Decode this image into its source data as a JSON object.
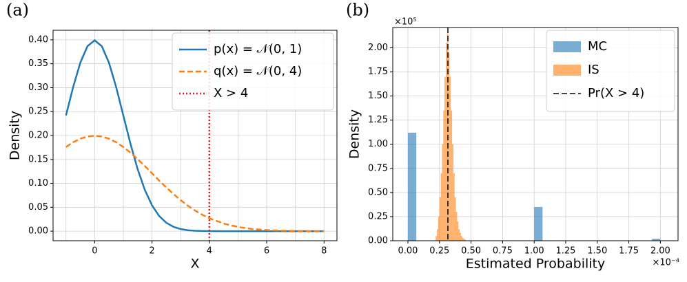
{
  "chart_data": [
    {
      "type": "line",
      "panel_label": "(a)",
      "xlabel": "X",
      "ylabel": "Density",
      "x": [
        -1,
        -0.75,
        -0.5,
        -0.25,
        0,
        0.25,
        0.5,
        0.75,
        1,
        1.25,
        1.5,
        1.75,
        2,
        2.25,
        2.5,
        2.75,
        3,
        3.25,
        3.5,
        3.75,
        4,
        4.5,
        5,
        5.5,
        6,
        6.5,
        7,
        7.5,
        8
      ],
      "series": [
        {
          "name": "p(x) = 𝒩(0, 1)",
          "color": "#1f77b4",
          "dash": "solid",
          "values": [
            0.242,
            0.3011,
            0.3521,
            0.3867,
            0.3989,
            0.3867,
            0.3521,
            0.3011,
            0.242,
            0.1826,
            0.1295,
            0.0863,
            0.054,
            0.0317,
            0.0175,
            0.0091,
            0.0044,
            0.002,
            0.0009,
            0.0004,
            0.0001,
            0,
            0,
            0,
            0,
            0,
            0,
            0,
            0
          ]
        },
        {
          "name": "q(x) = 𝒩(0, 4)",
          "color": "#ff7f0e",
          "dash": "dashed",
          "values": [
            0.176,
            0.1859,
            0.1933,
            0.1979,
            0.1995,
            0.1979,
            0.1933,
            0.1859,
            0.176,
            0.1641,
            0.1506,
            0.136,
            0.121,
            0.1059,
            0.0913,
            0.0775,
            0.0648,
            0.0533,
            0.0431,
            0.0344,
            0.027,
            0.0159,
            0.0088,
            0.0045,
            0.0022,
            0.001,
            0.0004,
            0.0002,
            0.0001
          ]
        }
      ],
      "vlines": [
        {
          "name": "X > 4",
          "x": 4,
          "color": "#e31a1c",
          "dash": "dotted"
        }
      ],
      "xlim": [
        -1.45,
        8.45
      ],
      "ylim": [
        -0.02,
        0.42
      ],
      "xticks": [
        0,
        2,
        4,
        6,
        8
      ],
      "x_minor_grid": [
        -1,
        1,
        3,
        5,
        7
      ],
      "yticks": [
        {
          "value": 0,
          "label": "0.00"
        },
        {
          "value": 0.05,
          "label": "0.05"
        },
        {
          "value": 0.1,
          "label": "0.10"
        },
        {
          "value": 0.15,
          "label": "0.15"
        },
        {
          "value": 0.2,
          "label": "0.20"
        },
        {
          "value": 0.25,
          "label": "0.25"
        },
        {
          "value": 0.3,
          "label": "0.30"
        },
        {
          "value": 0.35,
          "label": "0.35"
        },
        {
          "value": 0.4,
          "label": "0.40"
        }
      ],
      "grid": true,
      "legend": "upper right"
    },
    {
      "type": "histogram",
      "panel_label": "(b)",
      "xlabel": "Estimated Probability",
      "ylabel": "Density",
      "x_multiplier": "×10⁻⁴",
      "y_multiplier": "×10⁵",
      "alpha": 0.6,
      "series": [
        {
          "name": "MC",
          "color": "#1f77b4",
          "bins": [
            0,
            0.0667,
            0.1333,
            0.2,
            0.2667,
            0.3333,
            0.4,
            0.4667,
            0.5333,
            0.6,
            0.6667,
            0.7333,
            0.8,
            0.8667,
            0.9333,
            1,
            1.0667,
            1.1333,
            1.2,
            1.2667,
            1.3333,
            1.4,
            1.4667,
            1.5333,
            1.6,
            1.6667,
            1.7333,
            1.8,
            1.8667,
            1.9333,
            2
          ],
          "values": [
            1.12,
            0,
            0,
            0,
            0,
            0,
            0,
            0,
            0,
            0,
            0,
            0,
            0,
            0,
            0,
            0.35,
            0,
            0,
            0,
            0,
            0,
            0,
            0,
            0,
            0,
            0,
            0,
            0,
            0,
            0.02
          ]
        },
        {
          "name": "IS",
          "color": "#ff7f0e",
          "bins": [
            0.22,
            0.23,
            0.24,
            0.25,
            0.26,
            0.27,
            0.28,
            0.29,
            0.3,
            0.31,
            0.32,
            0.33,
            0.34,
            0.35,
            0.36,
            0.37,
            0.38,
            0.39,
            0.4,
            0.41,
            0.42,
            0.43,
            0.44,
            0.45,
            0.46
          ],
          "values": [
            0.05,
            0.12,
            0.25,
            0.45,
            0.7,
            1.0,
            1.35,
            1.7,
            2.05,
            2.15,
            1.95,
            1.7,
            1.35,
            1.0,
            0.7,
            0.45,
            0.3,
            0.2,
            0.12,
            0.08,
            0.05,
            0.03,
            0.02,
            0.01
          ]
        }
      ],
      "vlines": [
        {
          "name": "Pr(X > 4)",
          "x": 0.3167,
          "color": "#000000",
          "dash": "dashed"
        }
      ],
      "xlim": [
        -0.12,
        2.14
      ],
      "ylim": [
        0,
        2.21
      ],
      "xticks": [
        {
          "value": 0,
          "label": "0.00"
        },
        {
          "value": 0.25,
          "label": "0.25"
        },
        {
          "value": 0.5,
          "label": "0.50"
        },
        {
          "value": 0.75,
          "label": "0.75"
        },
        {
          "value": 1,
          "label": "1.00"
        },
        {
          "value": 1.25,
          "label": "1.25"
        },
        {
          "value": 1.5,
          "label": "1.50"
        },
        {
          "value": 1.75,
          "label": "1.75"
        },
        {
          "value": 2,
          "label": "2.00"
        }
      ],
      "yticks": [
        {
          "value": 0,
          "label": "0.00"
        },
        {
          "value": 0.25,
          "label": "0.25"
        },
        {
          "value": 0.5,
          "label": "0.50"
        },
        {
          "value": 0.75,
          "label": "0.75"
        },
        {
          "value": 1,
          "label": "1.00"
        },
        {
          "value": 1.25,
          "label": "1.25"
        },
        {
          "value": 1.5,
          "label": "1.50"
        },
        {
          "value": 1.75,
          "label": "1.75"
        },
        {
          "value": 2,
          "label": "2.00"
        }
      ],
      "grid": true,
      "legend": "upper right"
    }
  ]
}
